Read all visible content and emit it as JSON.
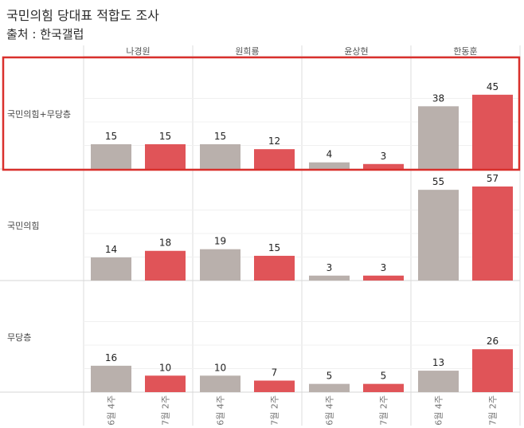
{
  "header": {
    "title": "국민의힘 당대표 적합도 조사",
    "subtitle": "출처 : 한국갤럽"
  },
  "chart_data": {
    "type": "bar",
    "title": "국민의힘 당대표 적합도 조사",
    "subtitle": "출처 : 한국갤럽",
    "candidates": [
      "나경원",
      "원희룡",
      "윤상현",
      "한동훈"
    ],
    "categories": [
      "6월 4주",
      "7월 2주"
    ],
    "rows": [
      {
        "label": "국민의힘+무당층",
        "highlighted": true,
        "values": [
          [
            15,
            15
          ],
          [
            15,
            12
          ],
          [
            4,
            3
          ],
          [
            38,
            45
          ]
        ]
      },
      {
        "label": "국민의힘",
        "highlighted": false,
        "values": [
          [
            14,
            18
          ],
          [
            19,
            15
          ],
          [
            3,
            3
          ],
          [
            55,
            57
          ]
        ]
      },
      {
        "label": "무당층",
        "highlighted": false,
        "values": [
          [
            16,
            10
          ],
          [
            10,
            7
          ],
          [
            5,
            5
          ],
          [
            13,
            26
          ]
        ]
      }
    ],
    "colors": {
      "6월 4주": "#b9b0ac",
      "7월 2주": "#e05458",
      "highlight_box": "#d9302c"
    },
    "grid": true
  }
}
